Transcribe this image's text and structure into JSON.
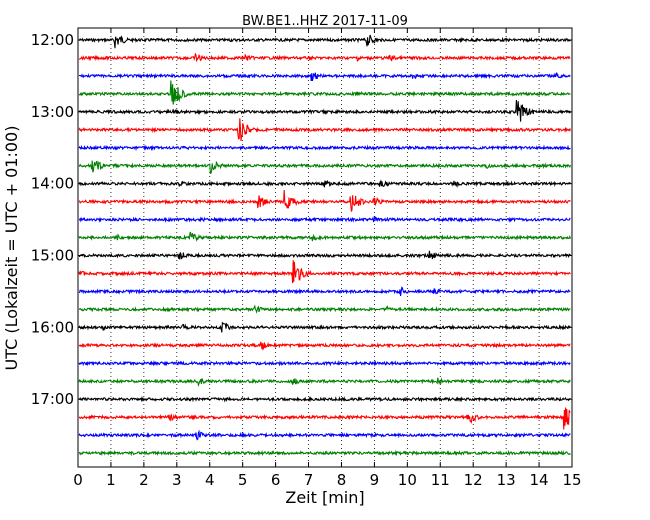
{
  "chart_data": {
    "type": "line",
    "title": "BW.BE1..HHZ 2017-11-09",
    "xlabel": "Zeit  [min]",
    "ylabel": "UTC (Lokalzeit = UTC + 01:00)",
    "xlim": [
      0,
      15
    ],
    "x_ticks": [
      0,
      1,
      2,
      3,
      4,
      5,
      6,
      7,
      8,
      9,
      10,
      11,
      12,
      13,
      14,
      15
    ],
    "y_ticks": [
      "12:00",
      "13:00",
      "14:00",
      "15:00",
      "16:00",
      "17:00"
    ],
    "grid": "vertical dotted",
    "trace_colors": [
      "#000000",
      "#ff0000",
      "#0000ff",
      "#008000"
    ],
    "traces": [
      {
        "start": "12:00",
        "color": "#000000",
        "events": [
          {
            "t": 1.15,
            "amp": 9
          },
          {
            "t": 8.8,
            "amp": 7
          },
          {
            "t": 4.6,
            "amp": 2
          }
        ]
      },
      {
        "start": "12:15",
        "color": "#ff0000",
        "events": [
          {
            "t": 3.6,
            "amp": 5
          },
          {
            "t": 5.1,
            "amp": 4
          },
          {
            "t": 8.5,
            "amp": 3
          },
          {
            "t": 9.5,
            "amp": 4
          }
        ]
      },
      {
        "start": "12:30",
        "color": "#0000ff",
        "events": [
          {
            "t": 7.1,
            "amp": 6
          },
          {
            "t": 14.5,
            "amp": 4
          },
          {
            "t": 10.2,
            "amp": 3
          }
        ]
      },
      {
        "start": "12:45",
        "color": "#008000",
        "events": [
          {
            "t": 2.85,
            "amp": 18
          },
          {
            "t": 8.5,
            "amp": 3
          }
        ]
      },
      {
        "start": "13:00",
        "color": "#000000",
        "events": [
          {
            "t": 13.35,
            "amp": 18
          },
          {
            "t": 2.9,
            "amp": 3
          }
        ]
      },
      {
        "start": "13:15",
        "color": "#ff0000",
        "events": [
          {
            "t": 4.9,
            "amp": 14
          },
          {
            "t": 6.0,
            "amp": 3
          }
        ]
      },
      {
        "start": "13:30",
        "color": "#0000ff",
        "events": [
          {
            "t": 1.2,
            "amp": 2
          }
        ]
      },
      {
        "start": "13:45",
        "color": "#008000",
        "events": [
          {
            "t": 0.45,
            "amp": 9
          },
          {
            "t": 4.05,
            "amp": 8
          },
          {
            "t": 12.4,
            "amp": 3
          }
        ]
      },
      {
        "start": "14:00",
        "color": "#000000",
        "events": [
          {
            "t": 3.1,
            "amp": 4
          },
          {
            "t": 7.5,
            "amp": 4
          },
          {
            "t": 9.2,
            "amp": 4
          },
          {
            "t": 11.4,
            "amp": 4
          }
        ]
      },
      {
        "start": "14:15",
        "color": "#ff0000",
        "events": [
          {
            "t": 5.5,
            "amp": 7
          },
          {
            "t": 6.3,
            "amp": 12
          },
          {
            "t": 8.3,
            "amp": 12
          },
          {
            "t": 9.0,
            "amp": 5
          }
        ]
      },
      {
        "start": "14:30",
        "color": "#0000ff",
        "events": [
          {
            "t": 3.7,
            "amp": 3
          },
          {
            "t": 9.0,
            "amp": 3
          }
        ]
      },
      {
        "start": "14:45",
        "color": "#008000",
        "events": [
          {
            "t": 3.45,
            "amp": 5
          },
          {
            "t": 7.15,
            "amp": 4
          },
          {
            "t": 1.2,
            "amp": 3
          }
        ]
      },
      {
        "start": "15:00",
        "color": "#000000",
        "events": [
          {
            "t": 3.1,
            "amp": 5
          },
          {
            "t": 10.7,
            "amp": 5
          }
        ]
      },
      {
        "start": "15:15",
        "color": "#ff0000",
        "events": [
          {
            "t": 6.55,
            "amp": 15
          },
          {
            "t": 0.1,
            "amp": 3
          }
        ]
      },
      {
        "start": "15:30",
        "color": "#0000ff",
        "events": [
          {
            "t": 9.8,
            "amp": 5
          },
          {
            "t": 10.8,
            "amp": 4
          }
        ]
      },
      {
        "start": "15:45",
        "color": "#008000",
        "events": [
          {
            "t": 5.4,
            "amp": 4
          },
          {
            "t": 9.4,
            "amp": 3
          }
        ]
      },
      {
        "start": "16:00",
        "color": "#000000",
        "events": [
          {
            "t": 4.4,
            "amp": 6
          },
          {
            "t": 0.8,
            "amp": 3
          },
          {
            "t": 3.2,
            "amp": 3
          }
        ]
      },
      {
        "start": "16:15",
        "color": "#ff0000",
        "events": [
          {
            "t": 5.6,
            "amp": 4
          }
        ]
      },
      {
        "start": "16:30",
        "color": "#0000ff",
        "events": [
          {
            "t": 9.3,
            "amp": 2
          }
        ]
      },
      {
        "start": "16:45",
        "color": "#008000",
        "events": [
          {
            "t": 3.7,
            "amp": 4
          },
          {
            "t": 6.55,
            "amp": 4
          },
          {
            "t": 10.95,
            "amp": 4
          }
        ]
      },
      {
        "start": "17:00",
        "color": "#000000",
        "events": [
          {
            "t": 4.5,
            "amp": 2
          }
        ]
      },
      {
        "start": "17:15",
        "color": "#ff0000",
        "events": [
          {
            "t": 2.8,
            "amp": 4
          },
          {
            "t": 11.85,
            "amp": 8
          },
          {
            "t": 14.8,
            "amp": 16
          }
        ]
      },
      {
        "start": "17:30",
        "color": "#0000ff",
        "events": [
          {
            "t": 3.6,
            "amp": 5
          }
        ]
      },
      {
        "start": "17:45",
        "color": "#008000",
        "events": [
          {
            "t": 9.0,
            "amp": 2
          }
        ]
      }
    ]
  }
}
